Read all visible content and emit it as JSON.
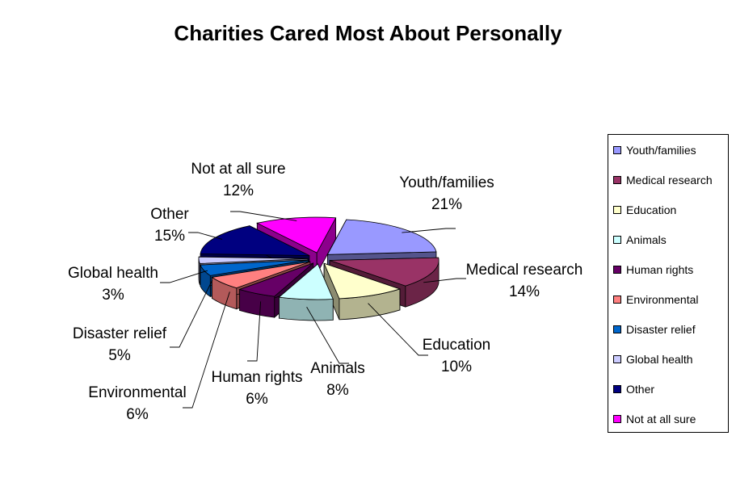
{
  "chart_data": {
    "type": "pie",
    "title": "Charities Cared Most About Personally",
    "categories": [
      "Youth/families",
      "Medical research",
      "Education",
      "Animals",
      "Human rights",
      "Environmental",
      "Disaster relief",
      "Global health",
      "Other",
      "Not at all sure"
    ],
    "values": [
      21,
      14,
      10,
      8,
      6,
      6,
      5,
      3,
      15,
      12
    ],
    "value_labels": [
      "21%",
      "14%",
      "10%",
      "8%",
      "6%",
      "6%",
      "5%",
      "3%",
      "15%",
      "12%"
    ],
    "colors": [
      "#9999ff",
      "#993366",
      "#ffffcc",
      "#ccffff",
      "#660066",
      "#ff8080",
      "#0066cc",
      "#ccccff",
      "#000080",
      "#ff00ff"
    ],
    "legend_position": "right",
    "style": "3d-exploded-pie"
  }
}
